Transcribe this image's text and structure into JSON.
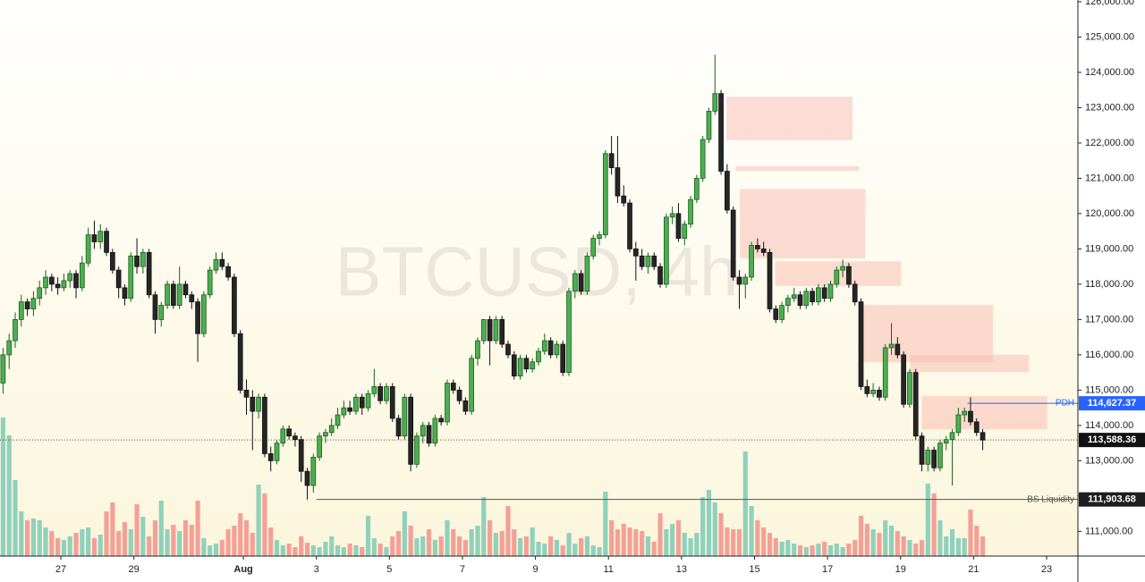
{
  "chart_data": {
    "type": "candlestick",
    "watermark": "BTCUSD, 4h",
    "up_color": "#4caf50",
    "down_color": "#262626",
    "volume_up_color": "#8fd1bd",
    "volume_down_color": "#f4a097",
    "zone_color": "#f9b4ab",
    "xlim": [
      0,
      177
    ],
    "xticks": [
      {
        "value": 10,
        "label": "27"
      },
      {
        "value": 22,
        "label": "29"
      },
      {
        "value": 40,
        "label": "Aug"
      },
      {
        "value": 52,
        "label": "3"
      },
      {
        "value": 64,
        "label": "5"
      },
      {
        "value": 76,
        "label": "7"
      },
      {
        "value": 88,
        "label": "9"
      },
      {
        "value": 100,
        "label": "11"
      },
      {
        "value": 112,
        "label": "13"
      },
      {
        "value": 124,
        "label": "15"
      },
      {
        "value": 136,
        "label": "17"
      },
      {
        "value": 148,
        "label": "19"
      },
      {
        "value": 160,
        "label": "21"
      },
      {
        "value": 172,
        "label": "23"
      }
    ],
    "ylim": [
      110300,
      126050
    ],
    "yticks": [
      {
        "value": 111000,
        "label": "111,000.00"
      },
      {
        "value": 112000,
        "label": "112,000.00"
      },
      {
        "value": 113000,
        "label": "113,000.00"
      },
      {
        "value": 114000,
        "label": "114,000.00"
      },
      {
        "value": 115000,
        "label": "115,000.00"
      },
      {
        "value": 116000,
        "label": "116,000.00"
      },
      {
        "value": 117000,
        "label": "117,000.00"
      },
      {
        "value": 118000,
        "label": "118,000.00"
      },
      {
        "value": 119000,
        "label": "119,000.00"
      },
      {
        "value": 120000,
        "label": "120,000.00"
      },
      {
        "value": 121000,
        "label": "121,000.00"
      },
      {
        "value": 122000,
        "label": "122,000.00"
      },
      {
        "value": 123000,
        "label": "123,000.00"
      },
      {
        "value": 124000,
        "label": "124,000.00"
      },
      {
        "value": 125000,
        "label": "125,000.00"
      },
      {
        "value": 126000,
        "label": "126,000.00"
      }
    ],
    "vlim": [
      0,
      160
    ],
    "candles": [
      [
        115200,
        116200,
        114900,
        116000
      ],
      [
        116000,
        116600,
        115600,
        116400
      ],
      [
        116400,
        117200,
        116200,
        117000
      ],
      [
        117000,
        117700,
        116800,
        117500
      ],
      [
        117500,
        117600,
        117100,
        117300
      ],
      [
        117300,
        117800,
        117100,
        117600
      ],
      [
        117600,
        118100,
        117400,
        117900
      ],
      [
        117900,
        118400,
        117700,
        118200
      ],
      [
        118200,
        118300,
        117800,
        118000
      ],
      [
        118000,
        118200,
        117700,
        117900
      ],
      [
        117900,
        118300,
        117800,
        118100
      ],
      [
        118100,
        118400,
        117900,
        118300
      ],
      [
        118300,
        118400,
        117600,
        117900
      ],
      [
        117900,
        118800,
        117800,
        118600
      ],
      [
        118600,
        119600,
        118500,
        119400
      ],
      [
        119400,
        119800,
        119000,
        119200
      ],
      [
        119200,
        119700,
        119000,
        119500
      ],
      [
        119500,
        119600,
        118800,
        118900
      ],
      [
        118900,
        119000,
        118300,
        118400
      ],
      [
        118400,
        118500,
        117600,
        117900
      ],
      [
        117900,
        118000,
        117400,
        117600
      ],
      [
        117600,
        118900,
        117500,
        118800
      ],
      [
        118800,
        119300,
        118300,
        118500
      ],
      [
        118500,
        119000,
        118300,
        118900
      ],
      [
        118900,
        119000,
        117600,
        117700
      ],
      [
        117700,
        117800,
        116600,
        117000
      ],
      [
        117000,
        117500,
        116800,
        117400
      ],
      [
        117400,
        118100,
        117300,
        118000
      ],
      [
        118000,
        118100,
        117300,
        117400
      ],
      [
        117400,
        118500,
        117300,
        118000
      ],
      [
        118000,
        118100,
        117600,
        117700
      ],
      [
        117700,
        117800,
        117300,
        117500
      ],
      [
        117500,
        117600,
        115800,
        116600
      ],
      [
        116600,
        117800,
        116500,
        117700
      ],
      [
        117700,
        118500,
        117600,
        118400
      ],
      [
        118400,
        118900,
        118300,
        118700
      ],
      [
        118700,
        118900,
        118400,
        118500
      ],
      [
        118500,
        118600,
        118100,
        118200
      ],
      [
        118200,
        118300,
        116500,
        116600
      ],
      [
        116600,
        116700,
        114900,
        115000
      ],
      [
        115000,
        115300,
        114300,
        114800
      ],
      [
        114800,
        115000,
        113300,
        114400
      ],
      [
        114400,
        114900,
        114200,
        114800
      ],
      [
        114800,
        114900,
        113100,
        113200
      ],
      [
        113200,
        113400,
        112700,
        113000
      ],
      [
        113000,
        113600,
        112900,
        113500
      ],
      [
        113500,
        114000,
        113400,
        113900
      ],
      [
        113900,
        114000,
        113600,
        113700
      ],
      [
        113700,
        113800,
        113400,
        113600
      ],
      [
        113600,
        113700,
        112400,
        112700
      ],
      [
        112700,
        112800,
        111900,
        112300
      ],
      [
        112300,
        113200,
        112100,
        113100
      ],
      [
        113100,
        113800,
        113000,
        113700
      ],
      [
        113700,
        113900,
        113500,
        113800
      ],
      [
        113800,
        114200,
        113700,
        114000
      ],
      [
        114000,
        114500,
        113900,
        114300
      ],
      [
        114300,
        114700,
        114200,
        114500
      ],
      [
        114500,
        114700,
        114300,
        114400
      ],
      [
        114400,
        114900,
        114300,
        114800
      ],
      [
        114800,
        114900,
        114300,
        114500
      ],
      [
        114500,
        115000,
        114400,
        114900
      ],
      [
        114900,
        115600,
        114800,
        115100
      ],
      [
        115100,
        115200,
        114600,
        114700
      ],
      [
        114700,
        115200,
        114600,
        115100
      ],
      [
        115100,
        115200,
        114100,
        114200
      ],
      [
        114200,
        114300,
        113600,
        113700
      ],
      [
        113700,
        114900,
        113600,
        114800
      ],
      [
        114800,
        114900,
        112700,
        112900
      ],
      [
        112900,
        113800,
        112800,
        113700
      ],
      [
        113700,
        114100,
        113500,
        114000
      ],
      [
        114000,
        114100,
        113400,
        113500
      ],
      [
        113500,
        114300,
        113400,
        114200
      ],
      [
        114200,
        114300,
        114000,
        114100
      ],
      [
        114100,
        115300,
        114000,
        115200
      ],
      [
        115200,
        115300,
        114900,
        115000
      ],
      [
        115000,
        115100,
        114600,
        114700
      ],
      [
        114700,
        114800,
        114300,
        114400
      ],
      [
        114400,
        116000,
        114300,
        115900
      ],
      [
        115900,
        116500,
        115700,
        116400
      ],
      [
        116400,
        117000,
        116300,
        117000
      ],
      [
        117000,
        117100,
        115700,
        116400
      ],
      [
        116400,
        117100,
        116300,
        117000
      ],
      [
        117000,
        117100,
        116200,
        116300
      ],
      [
        116300,
        116400,
        115900,
        116000
      ],
      [
        116000,
        116100,
        115300,
        115400
      ],
      [
        115400,
        116000,
        115300,
        115900
      ],
      [
        115900,
        116000,
        115500,
        115600
      ],
      [
        115600,
        115900,
        115500,
        115800
      ],
      [
        115800,
        116200,
        115700,
        116100
      ],
      [
        116100,
        116600,
        116000,
        116400
      ],
      [
        116400,
        116500,
        115900,
        116000
      ],
      [
        116000,
        116400,
        115900,
        116300
      ],
      [
        116300,
        116400,
        115400,
        115500
      ],
      [
        115500,
        117900,
        115400,
        117800
      ],
      [
        117800,
        118400,
        117600,
        118300
      ],
      [
        118300,
        118400,
        117700,
        117800
      ],
      [
        117800,
        118900,
        117700,
        118800
      ],
      [
        118800,
        119400,
        118700,
        119300
      ],
      [
        119300,
        119500,
        119100,
        119400
      ],
      [
        119400,
        121800,
        119300,
        121700
      ],
      [
        121700,
        122200,
        121100,
        121300
      ],
      [
        121300,
        122200,
        120300,
        120500
      ],
      [
        120500,
        120800,
        120200,
        120300
      ],
      [
        120300,
        120400,
        118900,
        119000
      ],
      [
        119000,
        119200,
        118100,
        118800
      ],
      [
        118800,
        119000,
        118400,
        118500
      ],
      [
        118500,
        118900,
        118300,
        118800
      ],
      [
        118800,
        118900,
        118400,
        118500
      ],
      [
        118500,
        118600,
        117900,
        118000
      ],
      [
        118000,
        120000,
        117900,
        119900
      ],
      [
        119900,
        120200,
        119700,
        120000
      ],
      [
        120000,
        120300,
        119200,
        119300
      ],
      [
        119300,
        119800,
        119100,
        119700
      ],
      [
        119700,
        120500,
        119600,
        120400
      ],
      [
        120400,
        121100,
        120300,
        121000
      ],
      [
        121000,
        122200,
        120900,
        122100
      ],
      [
        122100,
        123000,
        122000,
        122900
      ],
      [
        122900,
        124500,
        122800,
        123400
      ],
      [
        123400,
        123500,
        121100,
        121200
      ],
      [
        121200,
        121400,
        120000,
        120100
      ],
      [
        120100,
        120200,
        118100,
        118200
      ],
      [
        118200,
        118400,
        117300,
        118000
      ],
      [
        118000,
        118300,
        117600,
        118200
      ],
      [
        118200,
        119200,
        118100,
        119100
      ],
      [
        119100,
        119300,
        118900,
        119000
      ],
      [
        119000,
        119200,
        118800,
        118900
      ],
      [
        118900,
        119000,
        117200,
        117300
      ],
      [
        117300,
        117400,
        116900,
        117000
      ],
      [
        117000,
        117500,
        116900,
        117400
      ],
      [
        117400,
        117700,
        117200,
        117600
      ],
      [
        117600,
        117900,
        117500,
        117700
      ],
      [
        117700,
        117800,
        117300,
        117400
      ],
      [
        117400,
        117900,
        117300,
        117800
      ],
      [
        117800,
        117900,
        117400,
        117500
      ],
      [
        117500,
        118000,
        117400,
        117900
      ],
      [
        117900,
        118000,
        117500,
        117600
      ],
      [
        117600,
        118100,
        117500,
        118000
      ],
      [
        118000,
        118500,
        117900,
        118400
      ],
      [
        118400,
        118700,
        118200,
        118500
      ],
      [
        118500,
        118600,
        117900,
        118000
      ],
      [
        118000,
        118100,
        117400,
        117500
      ],
      [
        117500,
        117600,
        115000,
        115100
      ],
      [
        115100,
        115300,
        114800,
        114900
      ],
      [
        114900,
        115200,
        114800,
        115000
      ],
      [
        115000,
        115100,
        114700,
        114800
      ],
      [
        114800,
        116300,
        114700,
        116200
      ],
      [
        116200,
        116900,
        116000,
        116300
      ],
      [
        116300,
        116500,
        115900,
        116000
      ],
      [
        116000,
        116100,
        114500,
        114600
      ],
      [
        114600,
        115600,
        114500,
        115500
      ],
      [
        115500,
        115600,
        113600,
        113700
      ],
      [
        113700,
        113800,
        112700,
        112900
      ],
      [
        112900,
        113400,
        112700,
        113300
      ],
      [
        113300,
        113400,
        112700,
        112800
      ],
      [
        112800,
        113600,
        112700,
        113500
      ],
      [
        113500,
        113700,
        113300,
        113600
      ],
      [
        113600,
        113900,
        112300,
        113800
      ],
      [
        113800,
        114500,
        113700,
        114300
      ],
      [
        114300,
        114500,
        114100,
        114400
      ],
      [
        114400,
        114800,
        114000,
        114100
      ],
      [
        114100,
        114200,
        113700,
        113800
      ],
      [
        113800,
        113900,
        113300,
        113588
      ]
    ],
    "volume": [
      155,
      135,
      85,
      50,
      40,
      42,
      40,
      32,
      28,
      20,
      18,
      22,
      26,
      30,
      32,
      20,
      24,
      50,
      60,
      28,
      38,
      30,
      58,
      44,
      22,
      40,
      62,
      30,
      35,
      28,
      40,
      35,
      62,
      20,
      12,
      14,
      18,
      30,
      34,
      48,
      40,
      26,
      80,
      70,
      32,
      18,
      12,
      14,
      10,
      22,
      15,
      12,
      10,
      16,
      22,
      12,
      10,
      14,
      12,
      10,
      45,
      20,
      14,
      10,
      22,
      28,
      50,
      34,
      20,
      22,
      30,
      18,
      22,
      40,
      30,
      22,
      18,
      30,
      34,
      66,
      40,
      26,
      28,
      56,
      30,
      20,
      22,
      32,
      16,
      14,
      22,
      18,
      12,
      26,
      14,
      20,
      22,
      12,
      10,
      72,
      40,
      30,
      36,
      32,
      30,
      28,
      22,
      16,
      48,
      30,
      36,
      40,
      26,
      20,
      26,
      66,
      74,
      60,
      48,
      32,
      30,
      30,
      117,
      56,
      40,
      32,
      26,
      20,
      16,
      18,
      14,
      12,
      10,
      12,
      14,
      16,
      12,
      14,
      10,
      14,
      18,
      45,
      36,
      30,
      26,
      40,
      34,
      28,
      22,
      18,
      14,
      18,
      81,
      70,
      40,
      22,
      30,
      20,
      20,
      52,
      34,
      22
    ],
    "zones": [
      {
        "x": [
          119.4,
          140.1
        ],
        "y": [
          122080,
          123310
        ]
      },
      {
        "x": [
          120.9,
          141.2
        ],
        "y": [
          121210,
          121340
        ]
      },
      {
        "x": [
          121.6,
          142.2
        ],
        "y": [
          118730,
          120700
        ]
      },
      {
        "x": [
          127.4,
          148.1
        ],
        "y": [
          117950,
          118650
        ]
      },
      {
        "x": [
          141.6,
          163.2
        ],
        "y": [
          115790,
          117410
        ]
      },
      {
        "x": [
          149.6,
          169.1
        ],
        "y": [
          115510,
          116000
        ]
      },
      {
        "x": [
          151.5,
          172.1
        ],
        "y": [
          113890,
          114830
        ]
      }
    ],
    "levels": [
      {
        "name": "PDH",
        "value": 114627.37,
        "value_label": "114,627.37",
        "from": 159,
        "color": "#2962ff"
      },
      {
        "name": "BS Liquidity",
        "value": 111903.68,
        "value_label": "111,903.68",
        "from": 52,
        "color": "#555555"
      }
    ],
    "last_price": {
      "value": 113588.36,
      "value_label": "113,588.36"
    }
  }
}
